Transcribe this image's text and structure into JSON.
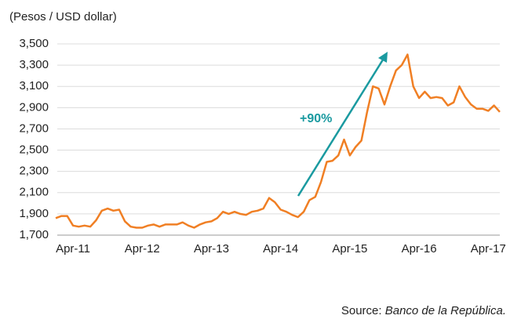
{
  "chart_data": {
    "type": "line",
    "subtitle": "(Pesos / USD dollar)",
    "annotation": "+90%",
    "source_label": "Source:",
    "source_name": "Banco de la República.",
    "categories": [
      null,
      null,
      null,
      "Apr-11",
      null,
      null,
      null,
      null,
      null,
      null,
      null,
      null,
      null,
      null,
      null,
      "Apr-12",
      null,
      null,
      null,
      null,
      null,
      null,
      null,
      null,
      null,
      null,
      null,
      "Apr-13",
      null,
      null,
      null,
      null,
      null,
      null,
      null,
      null,
      null,
      null,
      null,
      "Apr-14",
      null,
      null,
      null,
      null,
      null,
      null,
      null,
      null,
      null,
      null,
      null,
      "Apr-15",
      null,
      null,
      null,
      null,
      null,
      null,
      null,
      null,
      null,
      null,
      null,
      "Apr-16",
      null,
      null,
      null,
      null,
      null,
      null,
      null,
      null,
      null,
      null,
      null,
      "Apr-17",
      null,
      null
    ],
    "values": [
      1860,
      1880,
      1880,
      1790,
      1780,
      1790,
      1780,
      1840,
      1930,
      1950,
      1930,
      1940,
      1830,
      1780,
      1770,
      1770,
      1790,
      1800,
      1780,
      1800,
      1800,
      1800,
      1820,
      1790,
      1770,
      1800,
      1820,
      1830,
      1860,
      1920,
      1900,
      1920,
      1900,
      1890,
      1920,
      1930,
      1950,
      2050,
      2010,
      1940,
      1920,
      1890,
      1870,
      1920,
      2030,
      2060,
      2200,
      2390,
      2400,
      2450,
      2600,
      2450,
      2530,
      2590,
      2860,
      3100,
      3080,
      2930,
      3100,
      3250,
      3300,
      3400,
      3100,
      2990,
      3050,
      2990,
      3000,
      2990,
      2920,
      2950,
      3100,
      3000,
      2930,
      2890,
      2890,
      2870,
      2920,
      2860
    ],
    "color": "#f07f24",
    "annotation_color": "#1a9aa0",
    "ylim": [
      1700,
      3500
    ],
    "yticks": [
      {
        "value": 1700,
        "label": "1,700"
      },
      {
        "value": 1900,
        "label": "1,900"
      },
      {
        "value": 2100,
        "label": "2,100"
      },
      {
        "value": 2300,
        "label": "2,300"
      },
      {
        "value": 2500,
        "label": "2,500"
      },
      {
        "value": 2700,
        "label": "2,700"
      },
      {
        "value": 2900,
        "label": "2,900"
      },
      {
        "value": 3100,
        "label": "3,100"
      },
      {
        "value": 3300,
        "label": "3,300"
      },
      {
        "value": 3500,
        "label": "3,500"
      }
    ],
    "grid": true
  }
}
